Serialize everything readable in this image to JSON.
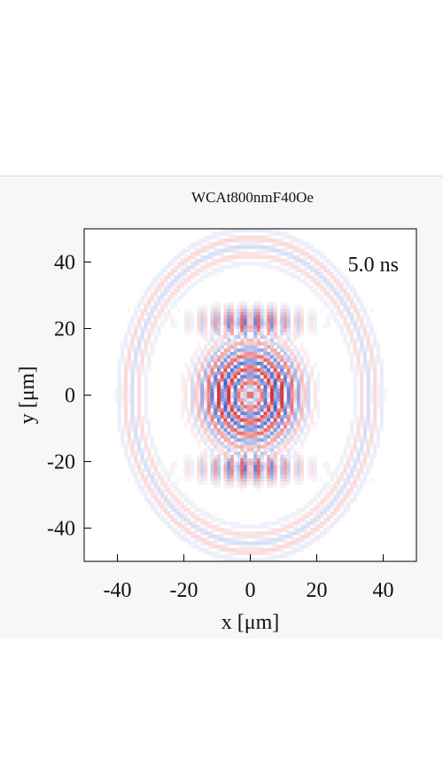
{
  "figure": {
    "title": "WCAt800nmF40Oe"
  },
  "chart_data": {
    "type": "heatmap",
    "title": "WCAt800nmF40Oe",
    "annotation": "5.0 ns",
    "xlabel": "x [μm]",
    "ylabel": "y [μm]",
    "xlim": [
      -50,
      50
    ],
    "ylim": [
      -50,
      50
    ],
    "xticks": [
      -40,
      -20,
      0,
      20,
      40
    ],
    "yticks": [
      40,
      20,
      0,
      -20,
      -40
    ],
    "colormap": {
      "negative": "#3a55c8",
      "zero": "#ffffff",
      "positive": "#d8262b"
    },
    "grid": false,
    "pattern": {
      "description_values": "signed amplitude field of concentric spin-wave fringes centered at (0,0)",
      "center": [
        0,
        0
      ],
      "inner_ring_radius": 14,
      "outer_ring_radius": 36,
      "fringe_period": 4.2,
      "vertical_lobe_y": 22
    }
  }
}
